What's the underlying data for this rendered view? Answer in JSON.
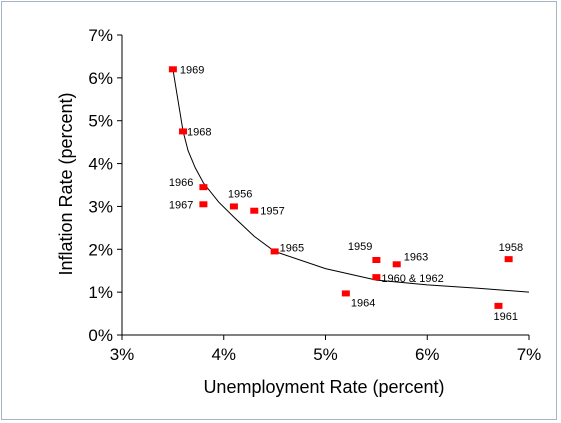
{
  "chart_data": {
    "type": "scatter",
    "title": "",
    "xlabel": "Unemployment Rate (percent)",
    "ylabel": "Inflation Rate (percent)",
    "xlim": [
      3,
      7
    ],
    "ylim": [
      0,
      7
    ],
    "x_ticks": [
      3,
      4,
      5,
      6,
      7
    ],
    "y_ticks": [
      0,
      1,
      2,
      3,
      4,
      5,
      6,
      7
    ],
    "x_tick_labels": [
      "3%",
      "4%",
      "5%",
      "6%",
      "7%"
    ],
    "y_tick_labels": [
      "0%",
      "1%",
      "2%",
      "3%",
      "4%",
      "5%",
      "6%",
      "7%"
    ],
    "grid": false,
    "legend": "none",
    "marker_color": "#ff0000",
    "curve_color": "#000000",
    "points": [
      {
        "label": "1969",
        "x": 3.5,
        "y": 6.2
      },
      {
        "label": "1968",
        "x": 3.6,
        "y": 4.75
      },
      {
        "label": "1966",
        "x": 3.8,
        "y": 3.45
      },
      {
        "label": "1967",
        "x": 3.8,
        "y": 3.05
      },
      {
        "label": "1956",
        "x": 4.1,
        "y": 3.0
      },
      {
        "label": "1957",
        "x": 4.3,
        "y": 2.9
      },
      {
        "label": "1965",
        "x": 4.5,
        "y": 1.95
      },
      {
        "label": "1959",
        "x": 5.5,
        "y": 1.75
      },
      {
        "label": "1963",
        "x": 5.7,
        "y": 1.65
      },
      {
        "label": "1960 & 1962",
        "x": 5.5,
        "y": 1.35
      },
      {
        "label": "1964",
        "x": 5.2,
        "y": 0.97
      },
      {
        "label": "1958",
        "x": 6.8,
        "y": 1.77
      },
      {
        "label": "1961",
        "x": 6.7,
        "y": 0.68
      }
    ],
    "curve": [
      {
        "x": 3.5,
        "y": 6.2
      },
      {
        "x": 3.6,
        "y": 4.75
      },
      {
        "x": 3.65,
        "y": 4.3
      },
      {
        "x": 3.72,
        "y": 3.9
      },
      {
        "x": 3.8,
        "y": 3.55
      },
      {
        "x": 3.95,
        "y": 3.1
      },
      {
        "x": 4.1,
        "y": 2.75
      },
      {
        "x": 4.3,
        "y": 2.3
      },
      {
        "x": 4.5,
        "y": 1.95
      },
      {
        "x": 5.0,
        "y": 1.55
      },
      {
        "x": 5.5,
        "y": 1.28
      },
      {
        "x": 6.0,
        "y": 1.17
      },
      {
        "x": 6.5,
        "y": 1.09
      },
      {
        "x": 7.0,
        "y": 1.0
      }
    ]
  }
}
